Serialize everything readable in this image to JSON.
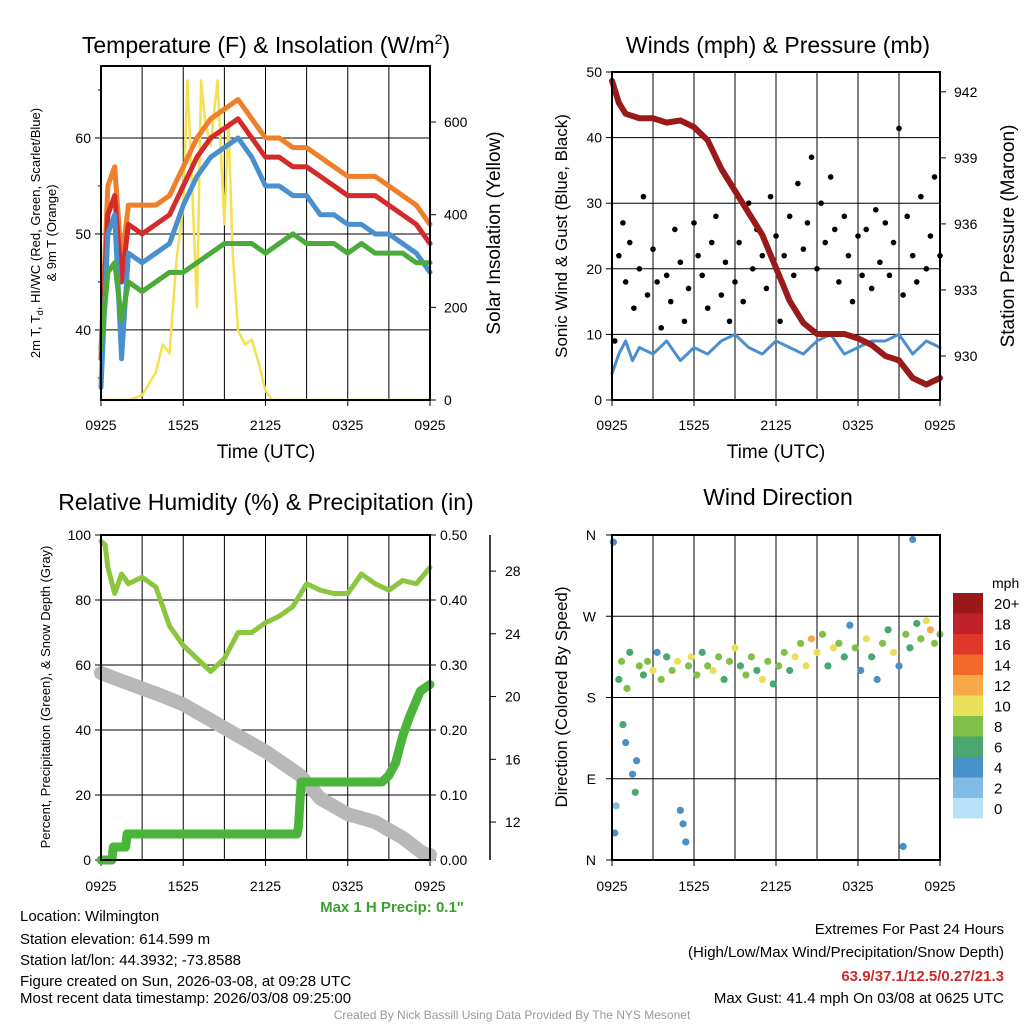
{
  "chart_data": [
    {
      "id": "temp",
      "type": "line",
      "title": "Temperature (F) & Insolation (W/m",
      "title_sup": "2",
      "title_close": ")",
      "xlabel": "Time (UTC)",
      "ylabel_line1": "2m T, T",
      "ylabel_sub": "d",
      "ylabel_line1_rest": ", HI/WC (Red, Green, Scarlet/Blue)",
      "ylabel_line2": "& 9m T (Orange)",
      "y2label": "Solar Insolation (Yellow)",
      "xticks": [
        "0925",
        "1525",
        "2125",
        "0325",
        "0925"
      ],
      "yticks": [
        40,
        50,
        60
      ],
      "y2ticks": [
        0,
        200,
        400,
        600
      ],
      "xlim": [
        0,
        24
      ],
      "ylim": [
        32.7,
        67.5
      ],
      "y2lim": [
        0,
        721
      ],
      "x": [
        0,
        0.5,
        1,
        1.5,
        2,
        3,
        4,
        5,
        6,
        7,
        8,
        9,
        10,
        11,
        12,
        13,
        14,
        15,
        16,
        17,
        18,
        19,
        20,
        21,
        22,
        23,
        24
      ],
      "series": [
        {
          "name": "9m T",
          "color": "#f07f2a",
          "axis": "left",
          "values": [
            38,
            55,
            57,
            47,
            53,
            53,
            53,
            54,
            57,
            60,
            62,
            63,
            64,
            62,
            60,
            60,
            59,
            59,
            58,
            57,
            56,
            56,
            56,
            55,
            54,
            53,
            51
          ]
        },
        {
          "name": "2m T",
          "color": "#d42a2a",
          "axis": "left",
          "values": [
            37,
            52,
            54,
            45,
            51,
            50,
            51,
            52,
            55,
            58,
            60,
            61,
            62,
            60,
            58,
            58,
            57,
            57,
            56,
            55,
            54,
            54,
            54,
            53,
            52,
            51,
            49
          ]
        },
        {
          "name": "Wind chill",
          "color": "#4a90cf",
          "axis": "left",
          "values": [
            34,
            50,
            52,
            37,
            48,
            47,
            48,
            49,
            53,
            56,
            58,
            59,
            60,
            58,
            55,
            55,
            54,
            54,
            52,
            52,
            51,
            51,
            50,
            50,
            49,
            48,
            46
          ]
        },
        {
          "name": "Dewpoint",
          "color": "#4aaa3a",
          "axis": "left",
          "values": [
            38,
            46,
            47,
            41,
            45,
            44,
            45,
            46,
            46,
            47,
            48,
            49,
            49,
            49,
            48,
            49,
            50,
            49,
            49,
            49,
            48,
            49,
            48,
            48,
            48,
            47,
            47
          ]
        }
      ],
      "insolation": {
        "color": "#f5e050",
        "x": [
          0,
          2,
          3,
          4,
          4.5,
          5,
          5.5,
          6,
          6.3,
          6.6,
          7,
          7.3,
          7.6,
          8,
          8.5,
          9,
          9.3,
          9.6,
          10,
          10.5,
          11,
          11.5,
          12,
          12.5,
          13,
          24
        ],
        "values": [
          0,
          0,
          10,
          60,
          120,
          100,
          300,
          420,
          690,
          500,
          200,
          690,
          600,
          550,
          690,
          380,
          600,
          320,
          150,
          120,
          130,
          80,
          20,
          0,
          0,
          0
        ]
      }
    },
    {
      "id": "wind",
      "type": "scatter",
      "title": "Winds (mph) & Pressure (mb)",
      "xlabel": "Time (UTC)",
      "ylabel": "Sonic Wind & Gust (Blue, Black)",
      "y2label": "Station Pressure (Maroon)",
      "xticks": [
        "0925",
        "1525",
        "2125",
        "0325",
        "0925"
      ],
      "yticks": [
        0,
        10,
        20,
        30,
        40,
        50
      ],
      "y2ticks": [
        930,
        933,
        936,
        939,
        942
      ],
      "xlim": [
        0,
        24
      ],
      "ylim": [
        0,
        50
      ],
      "y2lim": [
        928,
        942.9
      ],
      "pressure": {
        "color": "#9a1a1a",
        "x": [
          0,
          0.5,
          1,
          2,
          3,
          4,
          5,
          6,
          7,
          8,
          9,
          10,
          11,
          12,
          13,
          14,
          15,
          16,
          17,
          18,
          19,
          20,
          21,
          22,
          23,
          24
        ],
        "values": [
          942.5,
          941.5,
          941.0,
          940.8,
          940.8,
          940.6,
          940.7,
          940.4,
          939.8,
          938.5,
          937.5,
          936.5,
          935.5,
          934,
          932.5,
          931.5,
          931,
          931,
          931,
          930.8,
          930.5,
          930,
          929.8,
          929,
          928.7,
          929
        ]
      },
      "sonic": {
        "color": "#4a90cf",
        "x": [
          0,
          0.5,
          1,
          1.5,
          2,
          3,
          4,
          5,
          6,
          7,
          8,
          9,
          10,
          11,
          12,
          13,
          14,
          15,
          16,
          17,
          18,
          19,
          20,
          21,
          22,
          23,
          24
        ],
        "values": [
          4,
          7,
          9,
          6,
          8,
          7,
          9,
          6,
          8,
          7,
          9,
          10,
          8,
          7,
          9,
          8,
          7,
          9,
          10,
          7,
          8,
          9,
          9,
          10,
          7,
          9,
          8
        ]
      },
      "gusts": [
        [
          0.2,
          9
        ],
        [
          0.5,
          22
        ],
        [
          0.8,
          27
        ],
        [
          1,
          18
        ],
        [
          1.3,
          24
        ],
        [
          1.6,
          14
        ],
        [
          2,
          20
        ],
        [
          2.3,
          31
        ],
        [
          2.6,
          16
        ],
        [
          3,
          23
        ],
        [
          3.3,
          18
        ],
        [
          3.6,
          11
        ],
        [
          4,
          19
        ],
        [
          4.3,
          15
        ],
        [
          4.6,
          26
        ],
        [
          5,
          21
        ],
        [
          5.3,
          12
        ],
        [
          5.6,
          17
        ],
        [
          6,
          27
        ],
        [
          6.3,
          22
        ],
        [
          6.6,
          19
        ],
        [
          7,
          14
        ],
        [
          7.3,
          24
        ],
        [
          7.6,
          28
        ],
        [
          8,
          16
        ],
        [
          8.3,
          21
        ],
        [
          8.6,
          12
        ],
        [
          9,
          18
        ],
        [
          9.3,
          24
        ],
        [
          9.6,
          15
        ],
        [
          10,
          30
        ],
        [
          10.3,
          20
        ],
        [
          10.6,
          26
        ],
        [
          11,
          22
        ],
        [
          11.3,
          17
        ],
        [
          11.6,
          31
        ],
        [
          12,
          25
        ],
        [
          12.3,
          12
        ],
        [
          12.6,
          22
        ],
        [
          13,
          28
        ],
        [
          13.3,
          19
        ],
        [
          13.6,
          33
        ],
        [
          14,
          23
        ],
        [
          14.3,
          27
        ],
        [
          14.6,
          37
        ],
        [
          15,
          20
        ],
        [
          15.3,
          30
        ],
        [
          15.6,
          24
        ],
        [
          16,
          34
        ],
        [
          16.3,
          26
        ],
        [
          16.6,
          18
        ],
        [
          17,
          28
        ],
        [
          17.3,
          22
        ],
        [
          17.6,
          15
        ],
        [
          18,
          25
        ],
        [
          18.3,
          19
        ],
        [
          18.6,
          26
        ],
        [
          19,
          17
        ],
        [
          19.3,
          29
        ],
        [
          19.6,
          21
        ],
        [
          20,
          27
        ],
        [
          20.3,
          19
        ],
        [
          20.6,
          24
        ],
        [
          21,
          41.4
        ],
        [
          21.3,
          16
        ],
        [
          21.6,
          28
        ],
        [
          22,
          22
        ],
        [
          22.3,
          18
        ],
        [
          22.6,
          31
        ],
        [
          23,
          20
        ],
        [
          23.3,
          25
        ],
        [
          23.6,
          34
        ],
        [
          24,
          22
        ]
      ]
    },
    {
      "id": "rh",
      "type": "line",
      "title": "Relative Humidity (%) & Precipitation (in)",
      "xlabel": "",
      "ylabel": "Percent, Precipitation (Green), & Snow Depth (Gray)",
      "xticks": [
        "0925",
        "1525",
        "2125",
        "0325",
        "0925"
      ],
      "yticks": [
        0,
        20,
        40,
        60,
        80,
        100
      ],
      "y2ticks": [
        "0.00",
        "0.10",
        "0.20",
        "0.30",
        "0.40",
        "0.50"
      ],
      "y3ticks": [
        12,
        16,
        20,
        24,
        28
      ],
      "xlim": [
        0,
        24
      ],
      "ylim": [
        0,
        100
      ],
      "y2lim": [
        0,
        0.5
      ],
      "y3lim": [
        9.58,
        30.3
      ],
      "rh": {
        "color": "#8cc63f",
        "x": [
          0,
          0.3,
          0.5,
          1,
          1.5,
          2,
          3,
          4,
          5,
          6,
          7,
          8,
          9,
          10,
          11,
          12,
          13,
          14,
          15,
          16,
          17,
          18,
          19,
          20,
          21,
          22,
          23,
          24
        ],
        "values": [
          98,
          97,
          90,
          82,
          88,
          85,
          87,
          84,
          72,
          66,
          62,
          58,
          62,
          70,
          70,
          73,
          75,
          78,
          85,
          83,
          82,
          82,
          88,
          85,
          83,
          86,
          85,
          90
        ]
      },
      "precip": {
        "color": "#4ab53a",
        "x": [
          0,
          0.8,
          0.9,
          1.8,
          1.9,
          14.3,
          14.4,
          14.6,
          20.5,
          21,
          21.5,
          22,
          22.5,
          23.3,
          24
        ],
        "values": [
          0,
          0,
          0.02,
          0.02,
          0.04,
          0.04,
          0.05,
          0.12,
          0.12,
          0.13,
          0.15,
          0.19,
          0.22,
          0.26,
          0.27
        ]
      },
      "snow_depth": {
        "color": "#b8b8b8",
        "x": [
          0,
          1.5,
          4,
          6,
          8,
          10,
          12,
          14.5,
          16,
          18,
          20,
          22,
          23.5,
          24
        ],
        "values": [
          21.5,
          21,
          20.2,
          19.5,
          18.5,
          17.5,
          16.5,
          15,
          13.5,
          12.5,
          12,
          11,
          10,
          9.9
        ]
      },
      "annotation": "Max 1 H Precip: 0.1\""
    },
    {
      "id": "wdir",
      "type": "scatter",
      "title": "Wind Direction",
      "ylabel": "Direction (Colored By Speed)",
      "xticks": [
        "0925",
        "1525",
        "2125",
        "0325",
        "0925"
      ],
      "yticks": [
        "N",
        "E",
        "S",
        "W",
        "N"
      ],
      "xlim": [
        0,
        24
      ],
      "ylim": [
        0,
        360
      ],
      "legend_title": "mph",
      "legend": [
        {
          "label": "20+",
          "color": "#9a1a1c"
        },
        {
          "label": "18",
          "color": "#c0202a"
        },
        {
          "label": "16",
          "color": "#e0362a"
        },
        {
          "label": "14",
          "color": "#f26a2a"
        },
        {
          "label": "12",
          "color": "#f8a848"
        },
        {
          "label": "10",
          "color": "#e8e058"
        },
        {
          "label": "8",
          "color": "#80c048"
        },
        {
          "label": "6",
          "color": "#48a870"
        },
        {
          "label": "4",
          "color": "#4890c8"
        },
        {
          "label": "2",
          "color": "#80bce6"
        },
        {
          "label": "0",
          "color": "#b8e2f8"
        }
      ],
      "points": [
        [
          0.1,
          352,
          4
        ],
        [
          0.2,
          30,
          4
        ],
        [
          0.3,
          60,
          2
        ],
        [
          0.5,
          200,
          6
        ],
        [
          0.7,
          220,
          8
        ],
        [
          0.8,
          150,
          6
        ],
        [
          1,
          130,
          4
        ],
        [
          1.1,
          190,
          8
        ],
        [
          1.3,
          230,
          6
        ],
        [
          1.5,
          95,
          4
        ],
        [
          1.7,
          75,
          6
        ],
        [
          1.8,
          110,
          4
        ],
        [
          2,
          215,
          8
        ],
        [
          2.3,
          205,
          6
        ],
        [
          2.6,
          220,
          8
        ],
        [
          3,
          210,
          10
        ],
        [
          3.3,
          230,
          4
        ],
        [
          3.6,
          200,
          8
        ],
        [
          4,
          225,
          6
        ],
        [
          4.4,
          210,
          8
        ],
        [
          4.8,
          220,
          10
        ],
        [
          5,
          55,
          4
        ],
        [
          5.2,
          40,
          4
        ],
        [
          5.4,
          20,
          4
        ],
        [
          5.6,
          215,
          8
        ],
        [
          5.8,
          225,
          10
        ],
        [
          6.2,
          205,
          8
        ],
        [
          6.6,
          230,
          6
        ],
        [
          7,
          215,
          8
        ],
        [
          7.4,
          210,
          10
        ],
        [
          7.8,
          225,
          8
        ],
        [
          8.2,
          200,
          6
        ],
        [
          8.6,
          220,
          8
        ],
        [
          9,
          235,
          10
        ],
        [
          9.4,
          215,
          6
        ],
        [
          9.8,
          205,
          8
        ],
        [
          10.2,
          225,
          8
        ],
        [
          10.6,
          210,
          6
        ],
        [
          11,
          200,
          10
        ],
        [
          11.4,
          220,
          8
        ],
        [
          11.8,
          195,
          6
        ],
        [
          12.2,
          215,
          8
        ],
        [
          12.6,
          230,
          8
        ],
        [
          13,
          210,
          6
        ],
        [
          13.4,
          225,
          10
        ],
        [
          13.8,
          240,
          8
        ],
        [
          14.2,
          215,
          10
        ],
        [
          14.6,
          245,
          12
        ],
        [
          15,
          230,
          10
        ],
        [
          15.4,
          250,
          8
        ],
        [
          15.8,
          215,
          6
        ],
        [
          16.2,
          235,
          10
        ],
        [
          16.6,
          240,
          8
        ],
        [
          17,
          225,
          6
        ],
        [
          17.4,
          260,
          4
        ],
        [
          17.8,
          235,
          8
        ],
        [
          18.2,
          210,
          4
        ],
        [
          18.6,
          245,
          10
        ],
        [
          19,
          225,
          6
        ],
        [
          19.4,
          200,
          4
        ],
        [
          19.8,
          240,
          8
        ],
        [
          20.2,
          255,
          6
        ],
        [
          20.6,
          230,
          10
        ],
        [
          21,
          215,
          4
        ],
        [
          21.3,
          15,
          4
        ],
        [
          21.5,
          250,
          8
        ],
        [
          21.8,
          235,
          6
        ],
        [
          22,
          355,
          4
        ],
        [
          22.3,
          262,
          6
        ],
        [
          22.6,
          245,
          8
        ],
        [
          23,
          265,
          10
        ],
        [
          23.3,
          255,
          12
        ],
        [
          23.6,
          240,
          8
        ],
        [
          24,
          250,
          8
        ]
      ]
    }
  ],
  "info": {
    "location": "Location: Wilmington",
    "elevation": "Station elevation: 614.599 m",
    "latlon": "Station lat/lon: 44.3932; -73.8588",
    "created": "Figure created on Sun, 2026-03-08, at 09:28 UTC",
    "recent": "Most recent data timestamp: 2026/03/08 09:25:00"
  },
  "extremes": {
    "title": "Extremes For Past 24 Hours",
    "subtitle": "(High/Low/Max Wind/Precipitation/Snow Depth)",
    "values": "63.9/37.1/12.5/0.27/21.3",
    "max_gust": "Max Gust: 41.4 mph On 03/08 at 0625 UTC"
  },
  "credit": "Created By Nick Bassill Using Data Provided By The NYS Mesonet"
}
